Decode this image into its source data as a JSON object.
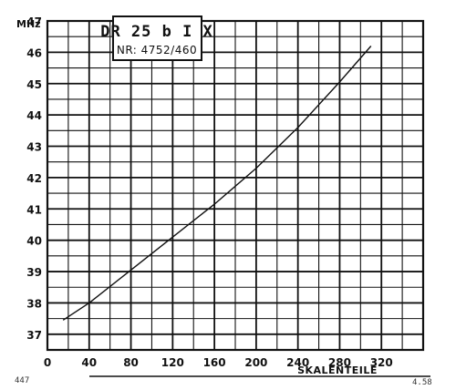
{
  "chart_data": {
    "type": "line",
    "title": "",
    "xlabel": "SKALENTEILE",
    "ylabel": "",
    "y_unit": "MHz",
    "xlim": [
      0,
      360
    ],
    "ylim": [
      36.5,
      47
    ],
    "x_ticks": [
      0,
      40,
      80,
      120,
      160,
      200,
      240,
      280,
      320
    ],
    "y_ticks": [
      37,
      38,
      39,
      40,
      41,
      42,
      43,
      44,
      45,
      46,
      47
    ],
    "grid": true,
    "label_box": {
      "title": "DR 25 b I X",
      "subtitle": "NR: 4752/460"
    },
    "series": [
      {
        "x": [
          15,
          40,
          80,
          120,
          160,
          200,
          240,
          280,
          310
        ],
        "y": [
          37.45,
          38.0,
          39.05,
          40.1,
          41.15,
          42.3,
          43.6,
          45.05,
          46.2
        ]
      }
    ]
  },
  "corner_marks": {
    "bottom_left": "447",
    "bottom_right": "4.58"
  }
}
